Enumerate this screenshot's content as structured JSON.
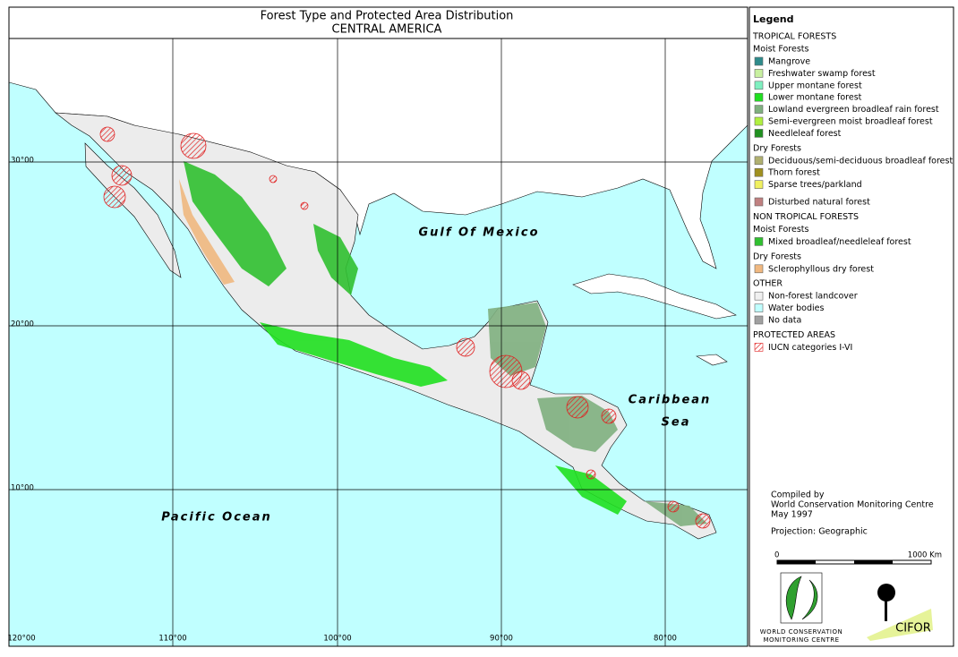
{
  "header": {
    "title": "Forest Type and Protected Area Distribution",
    "subtitle": "CENTRAL AMERICA"
  },
  "map": {
    "labels": [
      "Gulf Of Mexico",
      "Caribbean",
      "Sea",
      "Pacific Ocean"
    ],
    "latitude_labels": [
      "30°00",
      "20°00",
      "10°00"
    ],
    "longitude_labels": [
      "120°00",
      "110°00",
      "100°00",
      "90°00",
      "80°00"
    ]
  },
  "legend": {
    "title": "Legend",
    "sections": [
      {
        "heading": "TROPICAL FORESTS",
        "groups": [
          {
            "heading": "Moist Forests",
            "items": [
              {
                "label": "Mangrove",
                "color": "#2e8b8b"
              },
              {
                "label": "Freshwater swamp forest",
                "color": "#c8f0a0"
              },
              {
                "label": "Upper montane forest",
                "color": "#7ff0c0"
              },
              {
                "label": "Lower montane forest",
                "color": "#20e020"
              },
              {
                "label": "Lowland evergreen broadleaf rain forest",
                "color": "#7fb07f"
              },
              {
                "label": "Semi-evergreen moist broadleaf forest",
                "color": "#b0f040"
              },
              {
                "label": "Needleleaf forest",
                "color": "#209020"
              }
            ]
          },
          {
            "heading": "Dry Forests",
            "items": [
              {
                "label": "Deciduous/semi-deciduous broadleaf forest",
                "color": "#b0b070"
              },
              {
                "label": "Thorn forest",
                "color": "#a09020"
              },
              {
                "label": "Sparse trees/parkland",
                "color": "#f0f060"
              }
            ]
          },
          {
            "items": [
              {
                "label": "Disturbed natural forest",
                "color": "#c08080"
              }
            ]
          }
        ]
      },
      {
        "heading": "NON TROPICAL FORESTS",
        "groups": [
          {
            "heading": "Moist Forests",
            "items": [
              {
                "label": "Mixed broadleaf/needleleaf forest",
                "color": "#30c030"
              }
            ]
          },
          {
            "heading": "Dry Forests",
            "items": [
              {
                "label": "Sclerophyllous dry forest",
                "color": "#f0b880"
              }
            ]
          }
        ]
      },
      {
        "heading": "OTHER",
        "groups": [
          {
            "items": [
              {
                "label": "Non-forest landcover",
                "color": "#f0f0f0"
              },
              {
                "label": "Water bodies",
                "color": "#c0ffff"
              },
              {
                "label": "No data",
                "color": "#a0a0a0"
              }
            ]
          }
        ]
      },
      {
        "heading": "PROTECTED AREAS",
        "groups": [
          {
            "items": [
              {
                "label": "IUCN categories I-VI",
                "color": "#e02020",
                "hatch": true
              }
            ]
          }
        ]
      }
    ]
  },
  "credits": {
    "compiled": [
      "Compiled by",
      "World Conservation Monitoring Centre",
      "May 1997"
    ],
    "projection": "Projection: Geographic",
    "scale": {
      "start": "0",
      "end": "1000 Km"
    },
    "logos": {
      "wcmc": [
        "WORLD CONSERVATION",
        "MONITORING CENTRE"
      ],
      "cifor": "CIFOR"
    }
  }
}
